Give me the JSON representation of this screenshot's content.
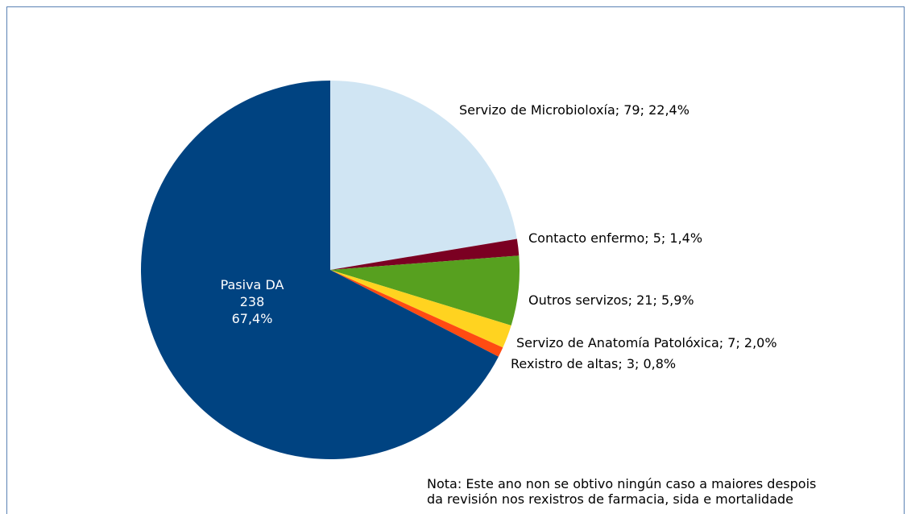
{
  "chart_data": {
    "type": "pie",
    "values": [
      79,
      5,
      21,
      7,
      3,
      238
    ],
    "value_labels": [
      [
        "Servizo de Microbioloxía; 79; 22,4%"
      ],
      [
        "Contacto enfermo; 5; 1,4%"
      ],
      [
        "Outros servizos; 21; 5,9%"
      ],
      [
        "Servizo de Anatomía Patolóxica; 7; 2,0%"
      ],
      [
        "Rexistro de altas; 3; 0,8%"
      ],
      [
        "Pasiva DA",
        "238",
        "67,4%"
      ]
    ],
    "colors": [
      "#d0e5f3",
      "#7b0022",
      "#57a01f",
      "#ffd320",
      "#ff4b12",
      "#004381"
    ],
    "note": [
      "Nota: Este ano non se obtivo ningún caso a maiores despois",
      "da revisión nos rexistros de farmacia, sida e mortalidade"
    ]
  }
}
